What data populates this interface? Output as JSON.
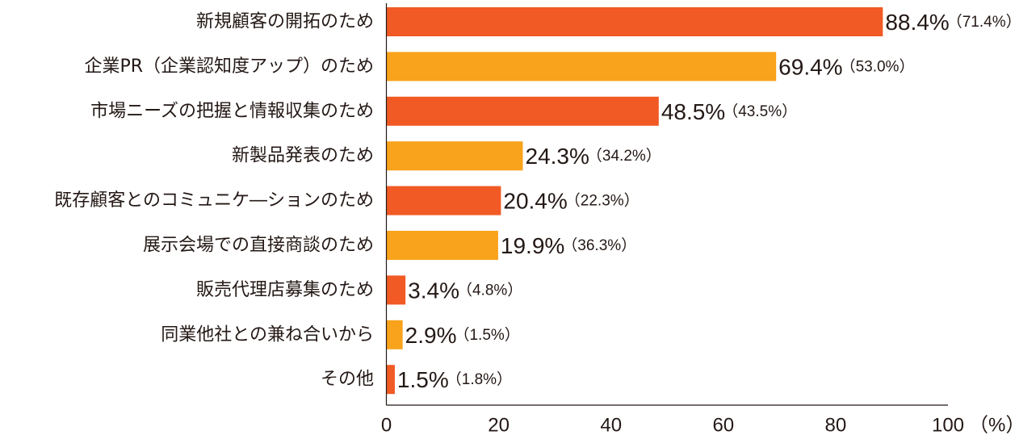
{
  "chart_data": {
    "type": "bar",
    "orientation": "horizontal",
    "categories": [
      "新規顧客の開拓のため",
      "企業PR（企業認知度アップ）のため",
      "市場ニーズの把握と情報収集のため",
      "新製品発表のため",
      "既存顧客とのコミュニケ―ションのため",
      "展示会場での直接商談のため",
      "販売代理店募集のため",
      "同業他社との兼ね合いから",
      "その他"
    ],
    "values": [
      88.4,
      69.4,
      48.5,
      24.3,
      20.4,
      19.9,
      3.4,
      2.9,
      1.5
    ],
    "value_labels": [
      "88.4%",
      "69.4%",
      "48.5%",
      "24.3%",
      "20.4%",
      "19.9%",
      "3.4%",
      "2.9%",
      "1.5%"
    ],
    "secondary_labels": [
      "（71.4%）",
      "（53.0%）",
      "（43.5%）",
      "（34.2%）",
      "（22.3%）",
      "（36.3%）",
      "（4.8%）",
      "（1.5%）",
      "（1.8%）"
    ],
    "x_ticks": [
      "0",
      "20",
      "40",
      "60",
      "80",
      "100"
    ],
    "x_unit_label": "（%）",
    "xlim": [
      0,
      100
    ],
    "grid": false,
    "colors": [
      "#F15A24",
      "#F9A21B"
    ]
  }
}
